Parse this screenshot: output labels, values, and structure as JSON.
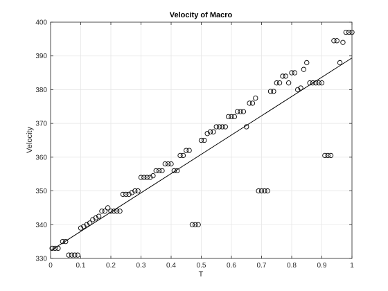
{
  "chart_data": {
    "type": "scatter",
    "title": "Velocity of Macro",
    "xlabel": "T",
    "ylabel": "Velocity",
    "xlim": [
      0,
      1
    ],
    "ylim": [
      330,
      400
    ],
    "xticks": [
      0,
      0.1,
      0.2,
      0.3,
      0.4,
      0.5,
      0.6,
      0.7,
      0.8,
      0.9,
      1
    ],
    "xtick_labels": [
      "0",
      "0.1",
      "0.2",
      "0.3",
      "0.4",
      "0.5",
      "0.6",
      "0.7",
      "0.8",
      "0.9",
      "1"
    ],
    "yticks": [
      330,
      340,
      350,
      360,
      370,
      380,
      390,
      400
    ],
    "ytick_labels": [
      "330",
      "340",
      "350",
      "360",
      "370",
      "380",
      "390",
      "400"
    ],
    "grid": true,
    "colors": {
      "marker": "#000000",
      "line": "#000000",
      "grid": "#e6e6e6",
      "axis": "#262626"
    },
    "series": [
      {
        "type": "scatter",
        "marker": "circle-open",
        "points": [
          [
            0.005,
            333
          ],
          [
            0.015,
            333
          ],
          [
            0.025,
            333
          ],
          [
            0.04,
            335
          ],
          [
            0.05,
            335
          ],
          [
            0.06,
            331
          ],
          [
            0.07,
            331
          ],
          [
            0.08,
            331
          ],
          [
            0.09,
            331
          ],
          [
            0.1,
            339
          ],
          [
            0.11,
            339.5
          ],
          [
            0.12,
            340
          ],
          [
            0.13,
            340.5
          ],
          [
            0.14,
            341.5
          ],
          [
            0.15,
            342
          ],
          [
            0.16,
            342.5
          ],
          [
            0.17,
            344
          ],
          [
            0.18,
            344
          ],
          [
            0.19,
            345
          ],
          [
            0.2,
            344
          ],
          [
            0.21,
            344
          ],
          [
            0.22,
            344
          ],
          [
            0.23,
            344
          ],
          [
            0.24,
            349
          ],
          [
            0.25,
            349
          ],
          [
            0.26,
            349
          ],
          [
            0.27,
            349.5
          ],
          [
            0.28,
            350
          ],
          [
            0.29,
            350
          ],
          [
            0.3,
            354
          ],
          [
            0.31,
            354
          ],
          [
            0.32,
            354
          ],
          [
            0.33,
            354
          ],
          [
            0.34,
            354.5
          ],
          [
            0.35,
            356
          ],
          [
            0.36,
            356
          ],
          [
            0.37,
            356
          ],
          [
            0.38,
            358
          ],
          [
            0.39,
            358
          ],
          [
            0.4,
            358
          ],
          [
            0.41,
            356
          ],
          [
            0.42,
            356
          ],
          [
            0.43,
            360.5
          ],
          [
            0.44,
            360.5
          ],
          [
            0.45,
            362
          ],
          [
            0.46,
            362
          ],
          [
            0.47,
            340
          ],
          [
            0.48,
            340
          ],
          [
            0.49,
            340
          ],
          [
            0.5,
            365
          ],
          [
            0.51,
            365
          ],
          [
            0.52,
            367
          ],
          [
            0.53,
            367.5
          ],
          [
            0.54,
            367.5
          ],
          [
            0.55,
            369
          ],
          [
            0.56,
            369
          ],
          [
            0.57,
            369
          ],
          [
            0.58,
            369
          ],
          [
            0.59,
            372
          ],
          [
            0.6,
            372
          ],
          [
            0.61,
            372
          ],
          [
            0.62,
            373.5
          ],
          [
            0.63,
            373.5
          ],
          [
            0.64,
            373.5
          ],
          [
            0.65,
            369
          ],
          [
            0.66,
            376
          ],
          [
            0.67,
            376
          ],
          [
            0.68,
            377.5
          ],
          [
            0.69,
            350
          ],
          [
            0.7,
            350
          ],
          [
            0.71,
            350
          ],
          [
            0.72,
            350
          ],
          [
            0.73,
            379.5
          ],
          [
            0.74,
            379.5
          ],
          [
            0.75,
            382
          ],
          [
            0.76,
            382
          ],
          [
            0.77,
            384
          ],
          [
            0.78,
            384
          ],
          [
            0.79,
            382
          ],
          [
            0.8,
            385
          ],
          [
            0.81,
            385
          ],
          [
            0.82,
            380
          ],
          [
            0.83,
            380.5
          ],
          [
            0.84,
            386
          ],
          [
            0.85,
            388
          ],
          [
            0.86,
            382
          ],
          [
            0.87,
            382
          ],
          [
            0.88,
            382
          ],
          [
            0.89,
            382
          ],
          [
            0.9,
            382
          ],
          [
            0.91,
            360.5
          ],
          [
            0.92,
            360.5
          ],
          [
            0.93,
            360.5
          ],
          [
            0.94,
            394.5
          ],
          [
            0.95,
            394.5
          ],
          [
            0.96,
            388
          ],
          [
            0.97,
            394
          ],
          [
            0.98,
            397
          ],
          [
            0.99,
            397
          ],
          [
            1.0,
            397
          ]
        ]
      },
      {
        "type": "line",
        "points": [
          [
            0,
            332.3
          ],
          [
            1,
            389.4
          ]
        ]
      }
    ]
  }
}
